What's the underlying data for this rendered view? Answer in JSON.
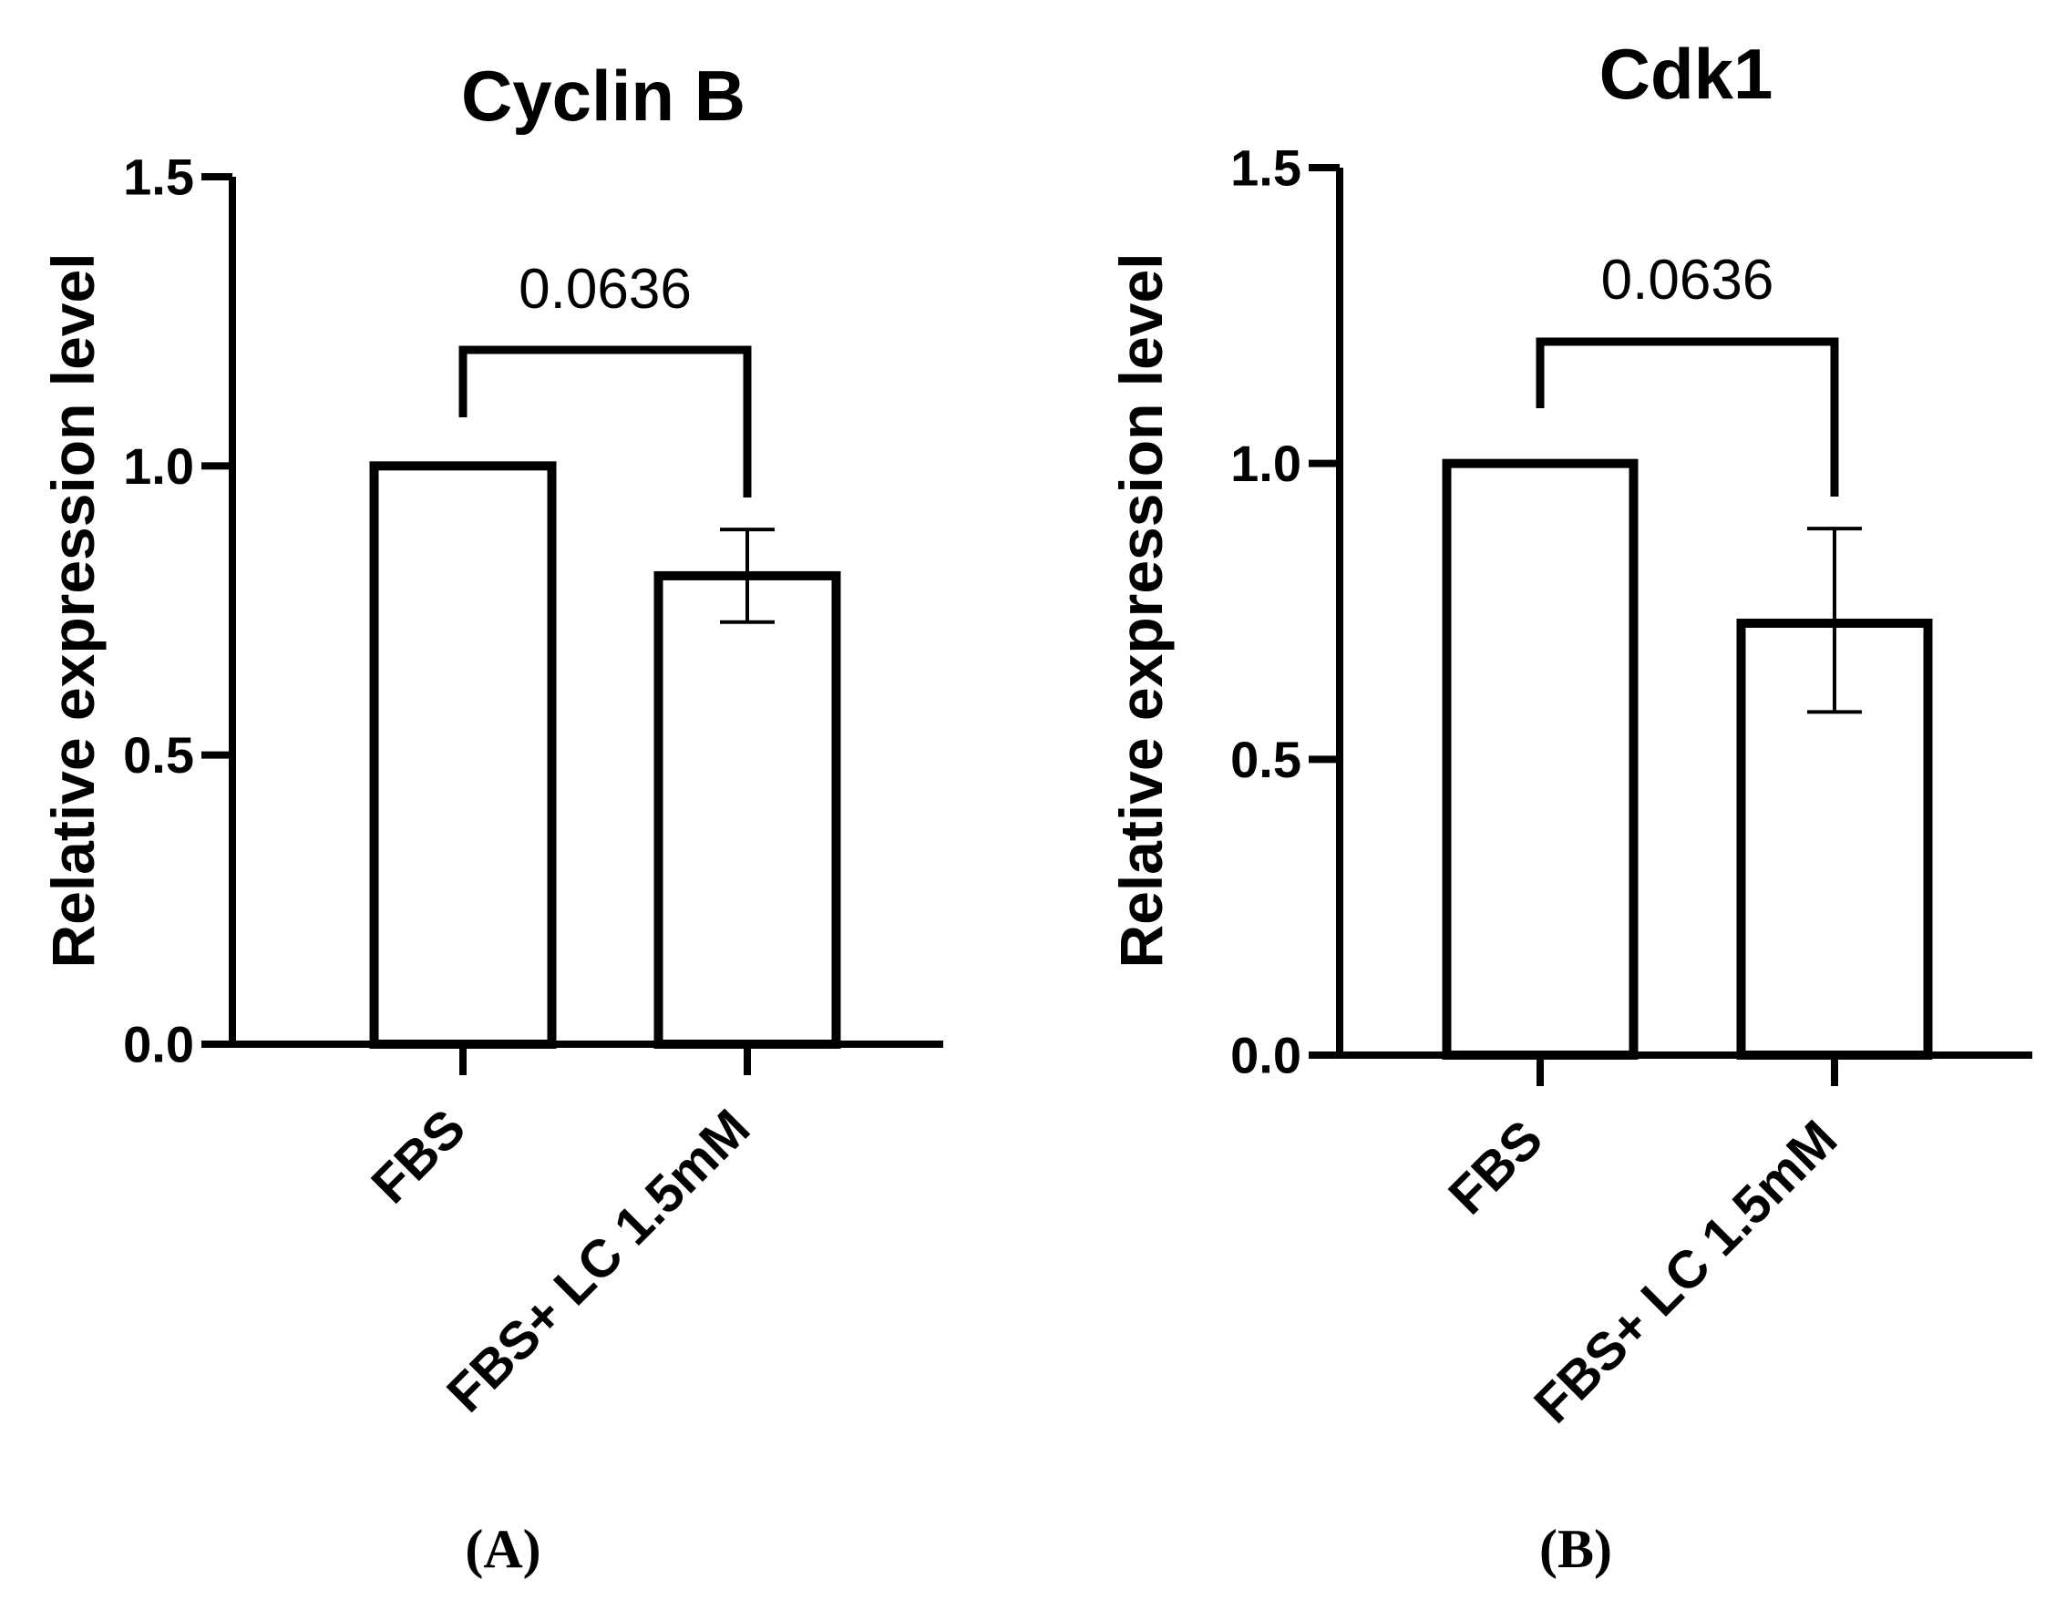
{
  "chart_data": [
    {
      "type": "bar",
      "title": "Cyclin B",
      "panel_label": "(A)",
      "xlabel": "",
      "ylabel": "Relative expression level",
      "ylim": [
        0,
        1.5
      ],
      "yticks": [
        "0.0",
        "0.5",
        "1.0",
        "1.5"
      ],
      "ytick_values": [
        0,
        0.5,
        1.0,
        1.5
      ],
      "categories": [
        "FBS",
        "FBS+ LC 1.5mM"
      ],
      "values": [
        1.0,
        0.81
      ],
      "error_low": [
        null,
        0.73
      ],
      "error_high": [
        null,
        0.89
      ],
      "significance": {
        "label": "0.0636",
        "from": 0,
        "to": 1
      }
    },
    {
      "type": "bar",
      "title": "Cdk1",
      "panel_label": "(B)",
      "xlabel": "",
      "ylabel": "Relative expression level",
      "ylim": [
        0,
        1.5
      ],
      "yticks": [
        "0.0",
        "0.5",
        "1.0",
        "1.5"
      ],
      "ytick_values": [
        0,
        0.5,
        1.0,
        1.5
      ],
      "categories": [
        "FBS",
        "FBS+ LC 1.5mM"
      ],
      "values": [
        1.0,
        0.73
      ],
      "error_low": [
        null,
        0.58
      ],
      "error_high": [
        null,
        0.89
      ],
      "significance": {
        "label": "0.0636",
        "from": 0,
        "to": 1
      }
    }
  ]
}
